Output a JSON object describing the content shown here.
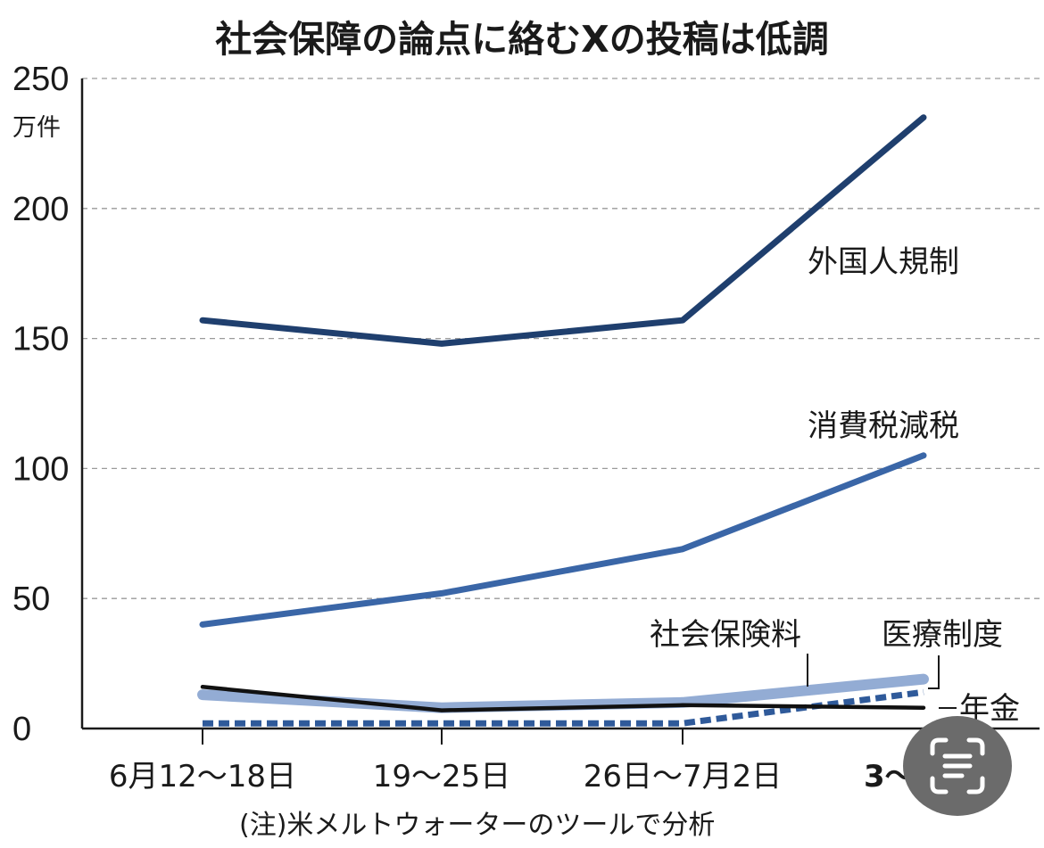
{
  "title": "社会保障の論点に絡むXの投稿は低調",
  "note": "(注)米メルトウォーターのツールで分析",
  "colors": {
    "foreign": "#1f3f6e",
    "tax": "#3a66a7",
    "premium": "#93acd4",
    "medical": "#2f5a9a",
    "pension": "#111111",
    "grid": "#9a9a9a"
  },
  "chart_data": {
    "type": "line",
    "title": "社会保障の論点に絡むXの投稿は低調",
    "ylabel": "万件",
    "ylim": [
      0,
      250
    ],
    "yticks": [
      0,
      50,
      100,
      150,
      200,
      250
    ],
    "categories": [
      "6月12〜18日",
      "19〜25日",
      "26日〜7月2日",
      "3〜"
    ],
    "grid": true,
    "legend": "inline labels",
    "series": [
      {
        "name": "外国人規制",
        "values": [
          157,
          148,
          157,
          235
        ],
        "color": "#1f3f6e",
        "style": "solid"
      },
      {
        "name": "消費税減税",
        "values": [
          40,
          52,
          69,
          105
        ],
        "color": "#3a66a7",
        "style": "solid"
      },
      {
        "name": "社会保険料",
        "values": [
          13,
          8,
          10,
          19
        ],
        "color": "#93acd4",
        "style": "solid-wide"
      },
      {
        "name": "医療制度",
        "values": [
          2,
          2,
          2,
          14
        ],
        "color": "#2f5a9a",
        "style": "dashed"
      },
      {
        "name": "年金",
        "values": [
          16,
          7,
          9,
          8
        ],
        "color": "#111111",
        "style": "solid-thin"
      }
    ]
  }
}
